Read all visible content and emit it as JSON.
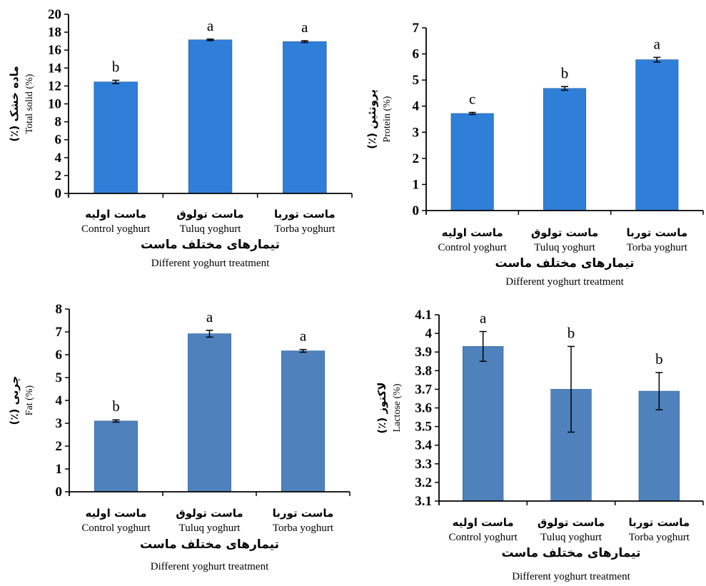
{
  "chart_data": [
    {
      "type": "bar",
      "categories": [
        {
          "fa": "ماست اولیه",
          "en": "Control yoghurt"
        },
        {
          "fa": "ماست تولوق",
          "en": "Tuluq yoghurt"
        },
        {
          "fa": "ماست توربا",
          "en": "Torba yoghurt"
        }
      ],
      "values": [
        12.45,
        17.15,
        16.95
      ],
      "errors": [
        0.18,
        0.08,
        0.1
      ],
      "letters": [
        "b",
        "a",
        "a"
      ],
      "ylim": [
        0,
        20
      ],
      "yticks": [
        "0",
        "2",
        "4",
        "6",
        "8",
        "10",
        "12",
        "14",
        "16",
        "18",
        "20"
      ],
      "ylabel_fa": "ماده خشک (٪)",
      "ylabel_en": "Total solid (%)",
      "xlabel_fa": "تیمارهای مختلف ماست",
      "xlabel_en": "Different yoghurt treatment",
      "bar_color": "#2f7ed8"
    },
    {
      "type": "bar",
      "categories": [
        {
          "fa": "ماست اولیه",
          "en": "Control yoghurt"
        },
        {
          "fa": "ماست تولوق",
          "en": "Tuluq yoghurt"
        },
        {
          "fa": "ماست توربا",
          "en": "Torba yoghurt"
        }
      ],
      "values": [
        3.72,
        4.68,
        5.78
      ],
      "errors": [
        0.04,
        0.07,
        0.09
      ],
      "letters": [
        "c",
        "b",
        "a"
      ],
      "ylim": [
        0,
        7
      ],
      "yticks": [
        "0",
        "1",
        "2",
        "3",
        "4",
        "5",
        "6",
        "7"
      ],
      "ylabel_fa": "پروتئین (٪)",
      "ylabel_en": "Protein (%)",
      "xlabel_fa": "تیمارهای مختلف ماست",
      "xlabel_en": "Different yoghurt treatment",
      "bar_color": "#2f7ed8"
    },
    {
      "type": "bar",
      "categories": [
        {
          "fa": "ماست اولیه",
          "en": "Control yoghurt"
        },
        {
          "fa": "ماست تولوق",
          "en": "Tuluq yoghurt"
        },
        {
          "fa": "ماست توربا",
          "en": "Torba yoghurt"
        }
      ],
      "values": [
        3.1,
        6.92,
        6.17
      ],
      "errors": [
        0.05,
        0.15,
        0.06
      ],
      "letters": [
        "b",
        "a",
        "a"
      ],
      "ylim": [
        0,
        8
      ],
      "yticks": [
        "0",
        "1",
        "2",
        "3",
        "4",
        "5",
        "6",
        "7",
        "8"
      ],
      "ylabel_fa": "چربی (٪)",
      "ylabel_en": "Fat (%)",
      "xlabel_fa": "تیمارهای مختلف ماست",
      "xlabel_en": "Different yoghurt treatment",
      "bar_color": "#4f81bd"
    },
    {
      "type": "bar",
      "categories": [
        {
          "fa": "ماست اولیه",
          "en": "Control yoghurt"
        },
        {
          "fa": "ماست تولوق",
          "en": "Tuluq yoghurt"
        },
        {
          "fa": "ماست توربا",
          "en": "Torba yoghurt"
        }
      ],
      "values": [
        3.93,
        3.7,
        3.69
      ],
      "errors": [
        0.08,
        0.23,
        0.1
      ],
      "letters": [
        "a",
        "b",
        "b"
      ],
      "ylim": [
        3.1,
        4.1
      ],
      "yticks": [
        "3.1",
        "3.2",
        "3.3",
        "3.4",
        "3.5",
        "3.6",
        "3.7",
        "3.8",
        "3.9",
        "4",
        "4.1"
      ],
      "ylabel_fa": "لاکتوز (٪)",
      "ylabel_en": "Lactose (%)",
      "xlabel_fa": "تیمارهای مختلف ماست",
      "xlabel_en": "Different yoghurt treatment",
      "bar_color": "#4f81bd"
    }
  ]
}
